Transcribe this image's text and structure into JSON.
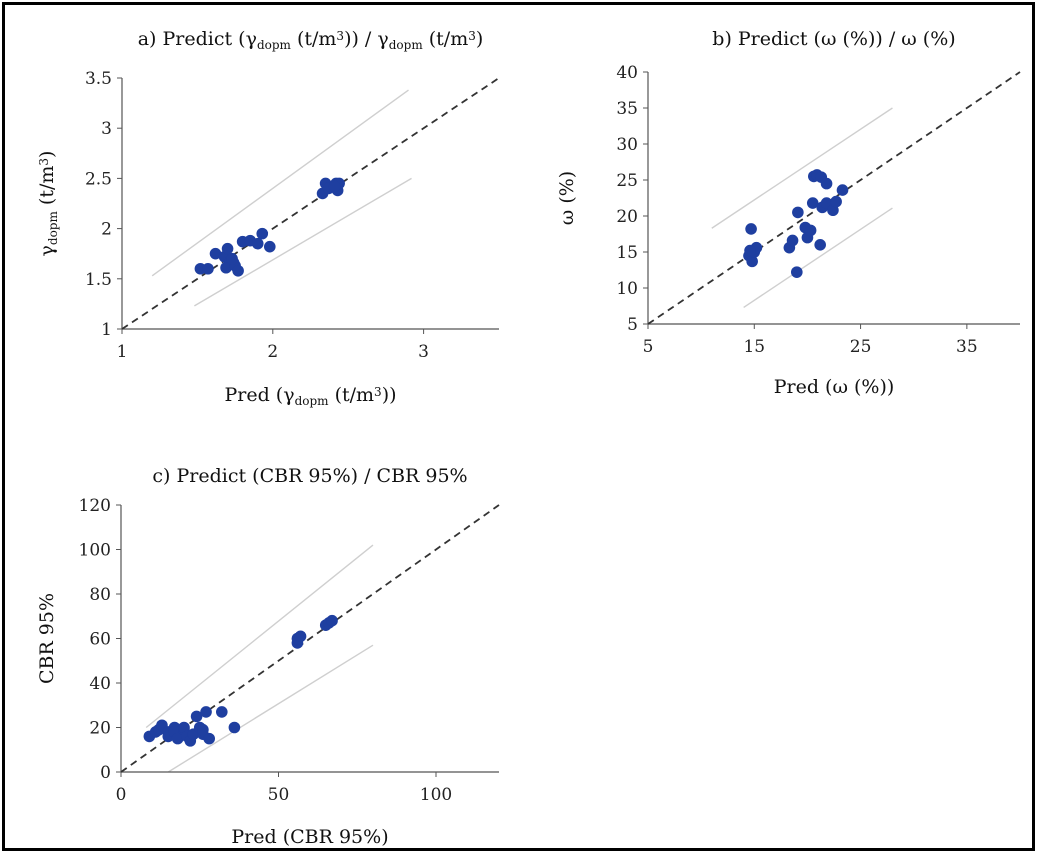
{
  "chart_data": [
    {
      "type": "scatter",
      "title": "a) Predict (γdopm (t/m3)) / γdopm (t/m3)",
      "title_parts": {
        "prefix": "a) Predict (",
        "sym": "γ",
        "sub": "dopm",
        "mid": " (t/m",
        "sup": "3",
        "mid2": ")) / ",
        "sym2": "γ",
        "sub2": "dopm",
        "end": " (t/m",
        "sup2": "3",
        "end2": ")"
      },
      "xlabel": "Pred (γdopm (t/m3))",
      "xlabel_parts": {
        "prefix": "Pred (",
        "sym": "γ",
        "sub": "dopm",
        "mid": " (t/m",
        "sup": "3",
        "end": "))"
      },
      "ylabel": "γdopm (t/m3)",
      "ylabel_parts": {
        "sym": "γ",
        "sub": "dopm",
        "mid": " (t/m",
        "sup": "3",
        "end": ")"
      },
      "xlim": [
        1,
        3.5
      ],
      "ylim": [
        1,
        3.5
      ],
      "xticks": [
        1,
        2,
        3
      ],
      "yticks": [
        1,
        1.5,
        2,
        2.5,
        3,
        3.5
      ],
      "yticklabels": [
        "1",
        "1.5",
        "2",
        "2.5",
        "3",
        "3.5"
      ],
      "marker_color": "#1F3FA0",
      "reference_line": "y = x (dashed)",
      "bands": [
        {
          "x": [
            1.2,
            2.9
          ],
          "y": [
            1.53,
            3.38
          ]
        },
        {
          "x": [
            1.48,
            2.92
          ],
          "y": [
            1.23,
            2.5
          ]
        }
      ],
      "points": [
        [
          1.52,
          1.6
        ],
        [
          1.57,
          1.6
        ],
        [
          1.62,
          1.75
        ],
        [
          1.68,
          1.72
        ],
        [
          1.7,
          1.8
        ],
        [
          1.72,
          1.68
        ],
        [
          1.74,
          1.66
        ],
        [
          1.69,
          1.61
        ],
        [
          1.75,
          1.63
        ],
        [
          1.77,
          1.58
        ],
        [
          1.73,
          1.7
        ],
        [
          1.8,
          1.87
        ],
        [
          1.85,
          1.88
        ],
        [
          1.9,
          1.85
        ],
        [
          1.93,
          1.95
        ],
        [
          1.98,
          1.82
        ],
        [
          2.33,
          2.35
        ],
        [
          2.35,
          2.45
        ],
        [
          2.37,
          2.4
        ],
        [
          2.42,
          2.45
        ],
        [
          2.43,
          2.38
        ],
        [
          2.44,
          2.45
        ],
        [
          2.41,
          2.42
        ]
      ]
    },
    {
      "type": "scatter",
      "title": "b) Predict (ω (%)) / ω (%)",
      "xlabel": "Pred (ω (%))",
      "ylabel": "ω (%)",
      "xlim": [
        5,
        40
      ],
      "ylim": [
        5,
        40
      ],
      "xticks": [
        5,
        15,
        25,
        35
      ],
      "yticks": [
        5,
        10,
        15,
        20,
        25,
        30,
        35,
        40
      ],
      "marker_color": "#1F3FA0",
      "reference_line": "y = x (dashed)",
      "bands": [
        {
          "x": [
            11,
            28
          ],
          "y": [
            18.3,
            35
          ]
        },
        {
          "x": [
            14,
            28
          ],
          "y": [
            7.3,
            21.1
          ]
        }
      ],
      "points": [
        [
          14.5,
          14.5
        ],
        [
          14.7,
          18.2
        ],
        [
          14.8,
          13.7
        ],
        [
          15.0,
          15.0
        ],
        [
          15.2,
          15.6
        ],
        [
          14.6,
          15.2
        ],
        [
          18.3,
          15.6
        ],
        [
          18.6,
          16.6
        ],
        [
          19.0,
          12.2
        ],
        [
          19.1,
          20.5
        ],
        [
          19.8,
          18.4
        ],
        [
          20.0,
          17.0
        ],
        [
          20.3,
          18.0
        ],
        [
          20.5,
          21.8
        ],
        [
          20.6,
          25.5
        ],
        [
          20.9,
          25.7
        ],
        [
          21.3,
          25.4
        ],
        [
          21.2,
          16.0
        ],
        [
          21.4,
          21.2
        ],
        [
          21.8,
          24.5
        ],
        [
          21.8,
          21.8
        ],
        [
          22.4,
          20.8
        ],
        [
          22.7,
          22.0
        ],
        [
          23.3,
          23.6
        ]
      ]
    },
    {
      "type": "scatter",
      "title": "c) Predict (CBR 95%) / CBR 95%",
      "xlabel": "Pred (CBR 95%)",
      "ylabel": "CBR 95%",
      "xlim": [
        0,
        120
      ],
      "ylim": [
        0,
        120
      ],
      "xticks": [
        0,
        50,
        100
      ],
      "yticks": [
        0,
        20,
        40,
        60,
        80,
        100,
        120
      ],
      "marker_color": "#1F3FA0",
      "reference_line": "y = x (dashed)",
      "bands": [
        {
          "x": [
            8,
            80
          ],
          "y": [
            20,
            102
          ]
        },
        {
          "x": [
            15,
            80
          ],
          "y": [
            0,
            57
          ]
        }
      ],
      "points": [
        [
          9,
          16
        ],
        [
          11,
          18
        ],
        [
          12,
          19
        ],
        [
          13,
          21
        ],
        [
          15,
          18
        ],
        [
          15,
          16
        ],
        [
          17,
          20
        ],
        [
          17,
          18
        ],
        [
          18,
          15
        ],
        [
          20,
          19
        ],
        [
          20,
          20
        ],
        [
          21,
          16
        ],
        [
          22,
          14
        ],
        [
          23,
          17
        ],
        [
          24,
          25
        ],
        [
          25,
          20
        ],
        [
          26,
          17
        ],
        [
          26,
          19
        ],
        [
          27,
          27
        ],
        [
          28,
          15
        ],
        [
          32,
          27
        ],
        [
          36,
          20
        ],
        [
          56,
          58
        ],
        [
          56,
          60
        ],
        [
          57,
          61
        ],
        [
          65,
          66
        ],
        [
          66,
          67
        ],
        [
          67,
          68
        ]
      ]
    }
  ]
}
